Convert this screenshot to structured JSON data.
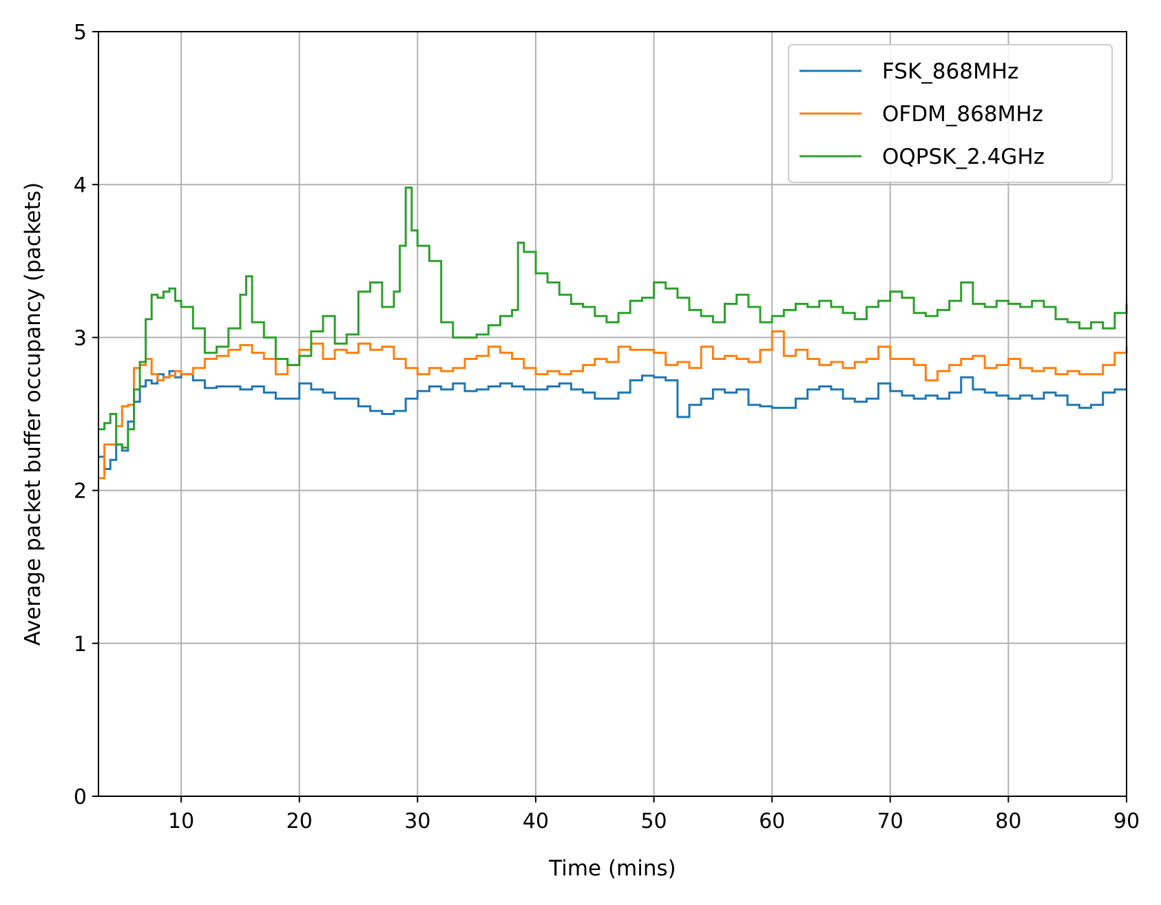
{
  "chart_data": {
    "type": "line",
    "title": "",
    "xlabel": "Time (mins)",
    "ylabel": "Average packet buffer occupancy (packets)",
    "xlim": [
      3,
      90
    ],
    "ylim": [
      0,
      5
    ],
    "xticks": [
      10,
      20,
      30,
      40,
      50,
      60,
      70,
      80,
      90
    ],
    "yticks": [
      0,
      1,
      2,
      3,
      4,
      5
    ],
    "grid": true,
    "legend_position": "top-right",
    "series": [
      {
        "name": "FSK_868MHz",
        "color": "#1f77b4",
        "x": [
          3,
          3.5,
          4,
          4.5,
          5,
          5.5,
          6,
          6.5,
          7,
          7.5,
          8,
          8.5,
          9,
          9.5,
          10,
          11,
          12,
          13,
          14,
          15,
          16,
          17,
          18,
          19,
          20,
          21,
          22,
          23,
          24,
          25,
          26,
          27,
          28,
          29,
          30,
          31,
          32,
          33,
          34,
          35,
          36,
          37,
          38,
          39,
          40,
          41,
          42,
          43,
          44,
          45,
          46,
          47,
          48,
          49,
          50,
          51,
          52,
          53,
          54,
          55,
          56,
          57,
          58,
          59,
          60,
          61,
          62,
          63,
          64,
          65,
          66,
          67,
          68,
          69,
          70,
          71,
          72,
          73,
          74,
          75,
          76,
          77,
          78,
          79,
          80,
          81,
          82,
          83,
          84,
          85,
          86,
          87,
          88,
          89,
          90
        ],
        "y": [
          2.22,
          2.14,
          2.2,
          2.3,
          2.26,
          2.45,
          2.58,
          2.68,
          2.72,
          2.7,
          2.76,
          2.74,
          2.78,
          2.74,
          2.76,
          2.72,
          2.67,
          2.68,
          2.68,
          2.66,
          2.68,
          2.64,
          2.6,
          2.6,
          2.7,
          2.66,
          2.64,
          2.6,
          2.6,
          2.55,
          2.52,
          2.5,
          2.52,
          2.6,
          2.65,
          2.68,
          2.66,
          2.7,
          2.65,
          2.66,
          2.68,
          2.7,
          2.68,
          2.66,
          2.66,
          2.68,
          2.7,
          2.66,
          2.64,
          2.6,
          2.6,
          2.64,
          2.72,
          2.75,
          2.74,
          2.72,
          2.48,
          2.56,
          2.6,
          2.66,
          2.64,
          2.66,
          2.56,
          2.55,
          2.54,
          2.54,
          2.6,
          2.66,
          2.68,
          2.66,
          2.6,
          2.58,
          2.6,
          2.7,
          2.65,
          2.62,
          2.6,
          2.62,
          2.6,
          2.64,
          2.74,
          2.66,
          2.64,
          2.62,
          2.6,
          2.62,
          2.6,
          2.64,
          2.62,
          2.56,
          2.54,
          2.56,
          2.64,
          2.66,
          2.66
        ]
      },
      {
        "name": "OFDM_868MHz",
        "color": "#ff7f0e",
        "x": [
          3,
          3.5,
          4,
          4.5,
          5,
          5.5,
          6,
          6.5,
          7,
          7.5,
          8,
          8.5,
          9,
          9.5,
          10,
          11,
          12,
          13,
          14,
          15,
          16,
          17,
          18,
          19,
          20,
          21,
          22,
          23,
          24,
          25,
          26,
          27,
          28,
          29,
          30,
          31,
          32,
          33,
          34,
          35,
          36,
          37,
          38,
          39,
          40,
          41,
          42,
          43,
          44,
          45,
          46,
          47,
          48,
          49,
          50,
          51,
          52,
          53,
          54,
          55,
          56,
          57,
          58,
          59,
          60,
          61,
          62,
          63,
          64,
          65,
          66,
          67,
          68,
          69,
          70,
          71,
          72,
          73,
          74,
          75,
          76,
          77,
          78,
          79,
          80,
          81,
          82,
          83,
          84,
          85,
          86,
          87,
          88,
          89,
          90
        ],
        "y": [
          2.08,
          2.3,
          2.3,
          2.42,
          2.55,
          2.56,
          2.8,
          2.82,
          2.86,
          2.76,
          2.72,
          2.74,
          2.75,
          2.78,
          2.76,
          2.8,
          2.86,
          2.88,
          2.92,
          2.95,
          2.9,
          2.86,
          2.76,
          2.82,
          2.92,
          2.96,
          2.86,
          2.92,
          2.9,
          2.96,
          2.92,
          2.94,
          2.86,
          2.8,
          2.76,
          2.8,
          2.78,
          2.8,
          2.86,
          2.88,
          2.94,
          2.9,
          2.86,
          2.8,
          2.76,
          2.78,
          2.76,
          2.78,
          2.82,
          2.86,
          2.84,
          2.94,
          2.92,
          2.92,
          2.9,
          2.82,
          2.84,
          2.8,
          2.94,
          2.86,
          2.88,
          2.86,
          2.84,
          2.92,
          3.04,
          2.88,
          2.92,
          2.86,
          2.82,
          2.84,
          2.8,
          2.84,
          2.86,
          2.94,
          2.86,
          2.86,
          2.82,
          2.72,
          2.78,
          2.82,
          2.86,
          2.88,
          2.8,
          2.82,
          2.86,
          2.8,
          2.78,
          2.8,
          2.76,
          2.78,
          2.76,
          2.76,
          2.82,
          2.9,
          2.94
        ]
      },
      {
        "name": "OQPSK_2.4GHz",
        "color": "#2ca02c",
        "x": [
          3,
          3.5,
          4,
          4.5,
          5,
          5.5,
          6,
          6.5,
          7,
          7.5,
          8,
          8.5,
          9,
          9.5,
          10,
          11,
          12,
          13,
          14,
          15,
          15.5,
          16,
          17,
          18,
          19,
          20,
          21,
          22,
          23,
          24,
          25,
          26,
          27,
          28,
          28.5,
          29,
          29.5,
          30,
          31,
          32,
          33,
          34,
          35,
          36,
          37,
          38,
          38.5,
          39,
          40,
          41,
          42,
          43,
          44,
          45,
          46,
          47,
          48,
          49,
          50,
          51,
          52,
          53,
          54,
          55,
          56,
          57,
          58,
          59,
          60,
          61,
          62,
          63,
          64,
          65,
          66,
          67,
          68,
          69,
          70,
          71,
          72,
          73,
          74,
          75,
          76,
          77,
          78,
          79,
          80,
          81,
          82,
          83,
          84,
          85,
          86,
          87,
          88,
          89,
          90
        ],
        "y": [
          2.4,
          2.44,
          2.5,
          2.3,
          2.28,
          2.4,
          2.66,
          2.84,
          3.12,
          3.28,
          3.26,
          3.3,
          3.32,
          3.24,
          3.2,
          3.06,
          2.9,
          2.94,
          3.06,
          3.28,
          3.4,
          3.1,
          3.0,
          2.86,
          2.82,
          2.88,
          3.04,
          3.14,
          2.96,
          3.02,
          3.3,
          3.36,
          3.2,
          3.3,
          3.6,
          3.98,
          3.7,
          3.6,
          3.5,
          3.1,
          3.0,
          3.0,
          3.02,
          3.08,
          3.14,
          3.18,
          3.62,
          3.56,
          3.42,
          3.36,
          3.28,
          3.22,
          3.2,
          3.14,
          3.1,
          3.16,
          3.24,
          3.26,
          3.36,
          3.32,
          3.26,
          3.18,
          3.14,
          3.1,
          3.22,
          3.28,
          3.2,
          3.1,
          3.14,
          3.18,
          3.22,
          3.2,
          3.24,
          3.2,
          3.16,
          3.12,
          3.2,
          3.24,
          3.3,
          3.26,
          3.16,
          3.14,
          3.18,
          3.24,
          3.36,
          3.22,
          3.2,
          3.24,
          3.22,
          3.2,
          3.24,
          3.2,
          3.12,
          3.1,
          3.06,
          3.1,
          3.06,
          3.16,
          3.22
        ]
      }
    ]
  }
}
